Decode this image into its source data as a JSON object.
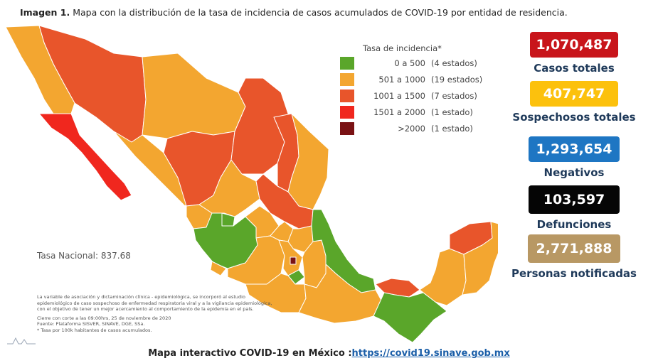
{
  "title": {
    "bold": "Imagen 1.",
    "text": " Mapa con la distribución de la tasa de incidencia de casos acumulados de COVID-19 por entidad de residencia."
  },
  "legend": {
    "title": "Tasa de incidencia*",
    "items": [
      {
        "range": "0 a  500",
        "count": "(4 estados)",
        "color": "#5aa62a"
      },
      {
        "range": "501 a  1000",
        "count": "(19 estados)",
        "color": "#f3a630"
      },
      {
        "range": "1001 a  1500",
        "count": "(7 estados)",
        "color": "#e8552b"
      },
      {
        "range": "1501 a  2000",
        "count": "(1 estado)",
        "color": "#f0271e"
      },
      {
        "range": ">2000",
        "count": "(1 estado)",
        "color": "#7a1214"
      }
    ]
  },
  "tasa_nacional": "Tasa Nacional: 837.68",
  "notes": [
    "La variable de asociación y dictaminación clínica - epidemiológica, se incorporó al estudio",
    "epidemiológico de caso sospechoso de enfermedad respiratoria viral y a la vigilancia epidemiológica,",
    "con el objetivo de tener un mejor acercamiento al comportamiento de la epidemia en el país.",
    "",
    "Cierre con corte a las 09:00hrs, 25 de noviembre de 2020",
    "Fuente: Plataforma SISVER, SINAVE, DGE, SSa.",
    "* Tasa por 100k habitantes de casos acumulados."
  ],
  "stats": [
    {
      "value": "1,070,487",
      "label": "Casos totales",
      "color": "#c8151b"
    },
    {
      "value": "407,747",
      "label": "Sospechosos totales",
      "color": "#fcc10d"
    },
    {
      "value": "1,293,654",
      "label": "Negativos",
      "color": "#1e76c3"
    },
    {
      "value": "103,597",
      "label": "Defunciones",
      "color": "#050505"
    },
    {
      "value": "2,771,888",
      "label": "Personas notificadas",
      "color": "#b89864"
    }
  ],
  "footer": {
    "text": "Mapa interactivo COVID-19 en México :",
    "link": "https://covid19.sinave.gob.mx"
  },
  "map_colors": {
    "green": "#5aa62a",
    "orange": "#f3a630",
    "darkorange": "#e8552b",
    "red": "#f0271e",
    "maroon": "#7a1214"
  }
}
